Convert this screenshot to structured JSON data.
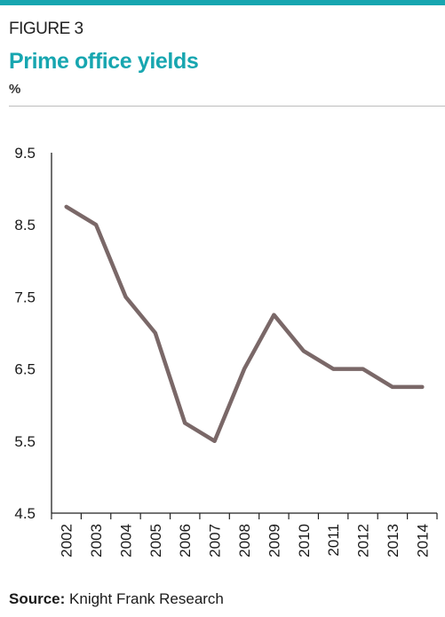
{
  "figure": {
    "label": "FIGURE 3",
    "title": "Prime office yields",
    "unit": "%"
  },
  "source": {
    "label": "Source:",
    "text": "Knight Frank Research"
  },
  "colors": {
    "accent": "#17a6b0",
    "line": "#7a6868",
    "axis": "#222222"
  },
  "chart_data": {
    "type": "line",
    "title": "Prime office yields",
    "xlabel": "",
    "ylabel": "%",
    "ylim": [
      4.5,
      9.5
    ],
    "yticks": [
      "9.5",
      "8.5",
      "7.5",
      "6.5",
      "5.5",
      "4.5"
    ],
    "categories": [
      "2002",
      "2003",
      "2004",
      "2005",
      "2006",
      "2007",
      "2008",
      "2009",
      "2010",
      "2011",
      "2012",
      "2013",
      "2014"
    ],
    "series": [
      {
        "values": [
          8.75,
          8.5,
          7.5,
          7.0,
          5.75,
          5.5,
          6.5,
          7.25,
          6.75,
          6.5,
          6.5,
          6.25,
          6.25
        ]
      }
    ],
    "grid": false,
    "legend": "none"
  }
}
